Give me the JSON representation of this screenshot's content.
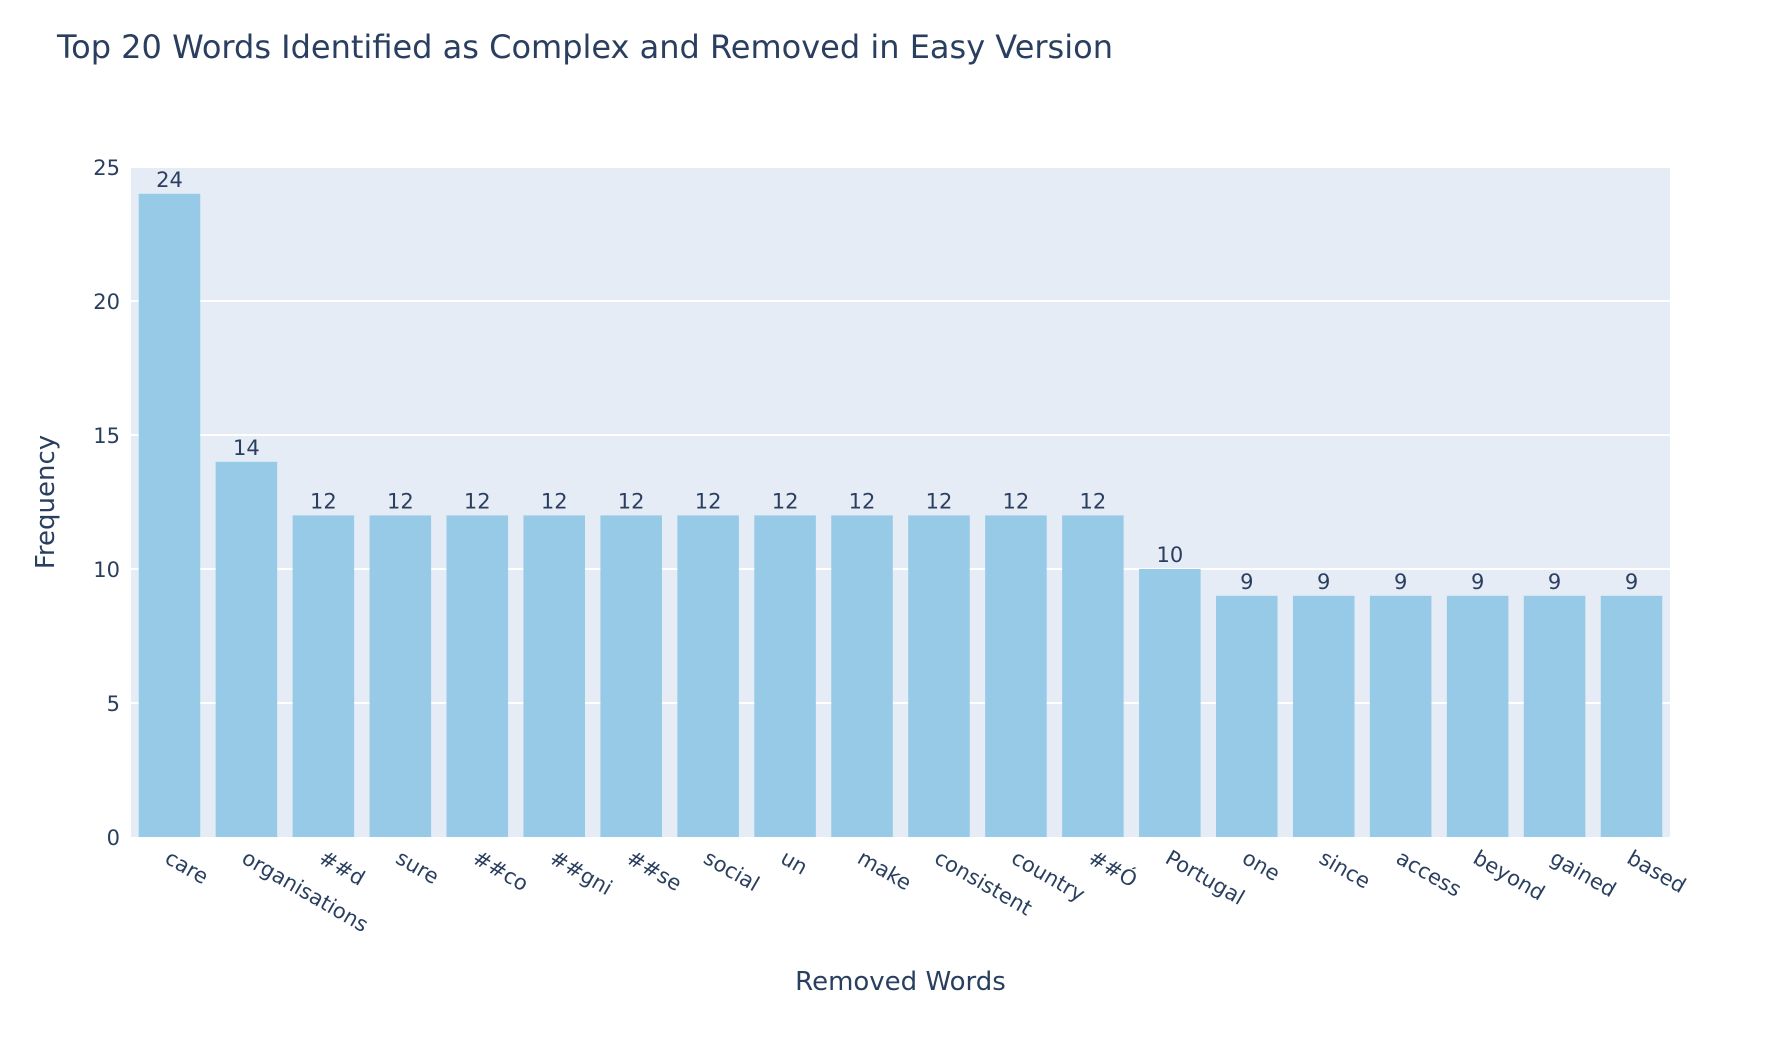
{
  "chart_data": {
    "type": "bar",
    "title": "Top 20 Words Identified as Complex and Removed in Easy Version",
    "xlabel": "Removed Words",
    "ylabel": "Frequency",
    "categories": [
      "care",
      "organisations",
      "##d",
      "sure",
      "##co",
      "##gni",
      "##se",
      "social",
      "un",
      "make",
      "consistent",
      "country",
      "##Ó",
      "Portugal",
      "one",
      "since",
      "access",
      "beyond",
      "gained",
      "based"
    ],
    "values": [
      24,
      14,
      12,
      12,
      12,
      12,
      12,
      12,
      12,
      12,
      12,
      12,
      12,
      10,
      9,
      9,
      9,
      9,
      9,
      9
    ],
    "ylim": [
      0,
      25
    ],
    "yticks": [
      0,
      5,
      10,
      15,
      20,
      25
    ],
    "grid": true,
    "data_labels": true,
    "bar_color": "#97cae7",
    "plot_background": "#e5ecf6",
    "text_color": "#2a3f5f"
  }
}
